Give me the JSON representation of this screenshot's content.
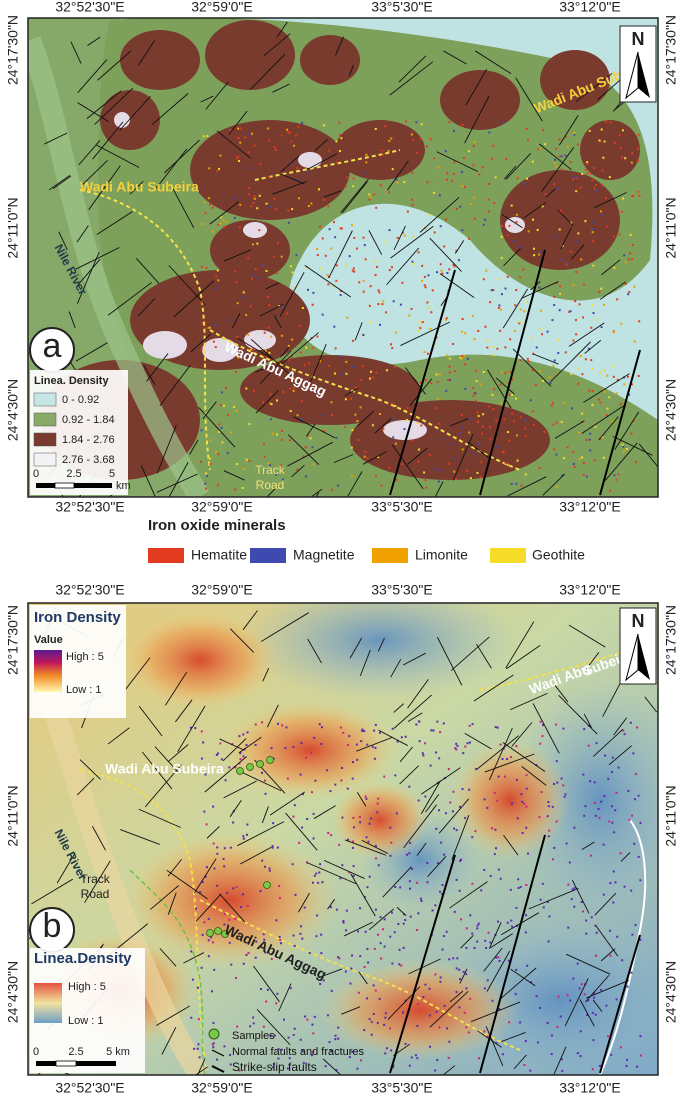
{
  "panel_a": {
    "letter": "a",
    "north": "N",
    "top_ticks": [
      "32°52'30\"E",
      "32°59'0\"E",
      "33°5'30\"E",
      "33°12'0\"E"
    ],
    "bottom_ticks": [
      "32°52'30\"E",
      "32°59'0\"E",
      "33°5'30\"E",
      "33°12'0\"E"
    ],
    "left_ticks": [
      "24°17'30\"N",
      "24°11'0\"N",
      "24°4'30\"N"
    ],
    "right_ticks": [
      "24°17'30\"N",
      "24°11'0\"N",
      "24°4'30\"N"
    ],
    "places": {
      "wadi_subeira_east": "Wadi Abu Subeira",
      "wadi_subeira_west": "Wadi Abu Subeira",
      "nile": "Nile River",
      "wadi_aggag": "Wadi Abu Aggag",
      "track": "Track",
      "road": "Road"
    },
    "legend": {
      "title": "Linea. Density",
      "classes": [
        "0 - 0.92",
        "0.92 - 1.84",
        "1.84 - 2.76",
        "2.76 - 3.68"
      ]
    },
    "scale": {
      "ticks": [
        "0",
        "2.5",
        "5"
      ],
      "unit": "km"
    }
  },
  "iron_legend": {
    "title": "Iron oxide minerals",
    "items": [
      "Hematite",
      "Magnetite",
      "Limonite",
      "Geothite"
    ]
  },
  "panel_b": {
    "letter": "b",
    "north": "N",
    "top_ticks": [
      "32°52'30\"E",
      "32°59'0\"E",
      "33°5'30\"E",
      "33°12'0\"E"
    ],
    "bottom_ticks": [
      "32°52'30\"E",
      "32°59'0\"E",
      "33°5'30\"E",
      "33°12'0\"E"
    ],
    "left_ticks": [
      "24°17'30\"N",
      "24°11'0\"N",
      "24°4'30\"N"
    ],
    "right_ticks": [
      "24°17'30\"N",
      "24°11'0\"N",
      "24°4'30\"N"
    ],
    "places": {
      "wadi_subeira_east_1": "Wadi Abu",
      "wadi_subeira_east_2": "Subeira",
      "wadi_subeira_west": "Wadi Abu Subeira",
      "nile": "Nile River",
      "wadi_aggag": "Wadi Abu Aggag",
      "track": "Track",
      "road": "Road"
    },
    "iron_density": {
      "title": "Iron Density",
      "subtitle": "Value",
      "high": "High : 5",
      "low": "Low : 1"
    },
    "linea_density": {
      "title": "Linea.Density",
      "high": "High : 5",
      "low": "Low : 1"
    },
    "scale": {
      "ticks": [
        "0",
        "2.5",
        "5 km"
      ]
    },
    "symbols": [
      "Samples",
      "Normal faults and fractures",
      "Strike-slip faults"
    ]
  }
}
